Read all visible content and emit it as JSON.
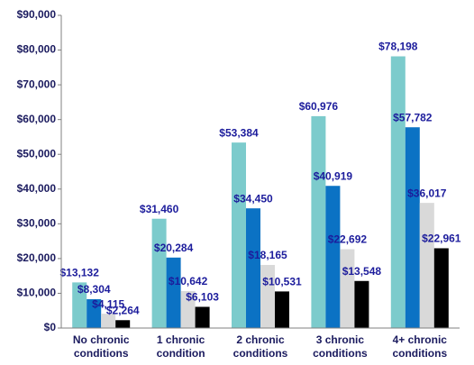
{
  "chart_data": {
    "type": "bar",
    "categories": [
      [
        "No chronic",
        "conditions"
      ],
      [
        "1 chronic",
        "condition"
      ],
      [
        "2 chronic",
        "conditions"
      ],
      [
        "3 chronic",
        "conditions"
      ],
      [
        "4+ chronic",
        "conditions"
      ]
    ],
    "series": [
      {
        "color": "#7ccbcc",
        "values": [
          13132,
          31460,
          53384,
          60976,
          78198
        ],
        "value_labels": [
          "$13,132",
          "$31,460",
          "$53,384",
          "$60,976",
          "$78,198"
        ]
      },
      {
        "color": "#0b72c4",
        "values": [
          8304,
          20284,
          34450,
          40919,
          57782
        ],
        "value_labels": [
          "$8,304",
          "$20,284",
          "$34,450",
          "$40,919",
          "$57,782"
        ]
      },
      {
        "color": "#d9d9d9",
        "values": [
          4115,
          10642,
          18165,
          22692,
          36017
        ],
        "value_labels": [
          "$4,115",
          "$10,642",
          "$18,165",
          "$22,692",
          "$36,017"
        ]
      },
      {
        "color": "#000000",
        "values": [
          2264,
          6103,
          10531,
          13548,
          22961
        ],
        "value_labels": [
          "$2,264",
          "$6,103",
          "$10,531",
          "$13,548",
          "$22,961"
        ]
      }
    ],
    "ylim": [
      0,
      90000
    ],
    "yticks": [
      {
        "value": 0,
        "label": "$0"
      },
      {
        "value": 10000,
        "label": "$10,000"
      },
      {
        "value": 20000,
        "label": "$20,000"
      },
      {
        "value": 30000,
        "label": "$30,000"
      },
      {
        "value": 40000,
        "label": "$40,000"
      },
      {
        "value": 50000,
        "label": "$50,000"
      },
      {
        "value": 60000,
        "label": "$60,000"
      },
      {
        "value": 70000,
        "label": "$70,000"
      },
      {
        "value": 80000,
        "label": "$80,000"
      },
      {
        "value": 90000,
        "label": "$90,000"
      }
    ],
    "grid": false
  }
}
